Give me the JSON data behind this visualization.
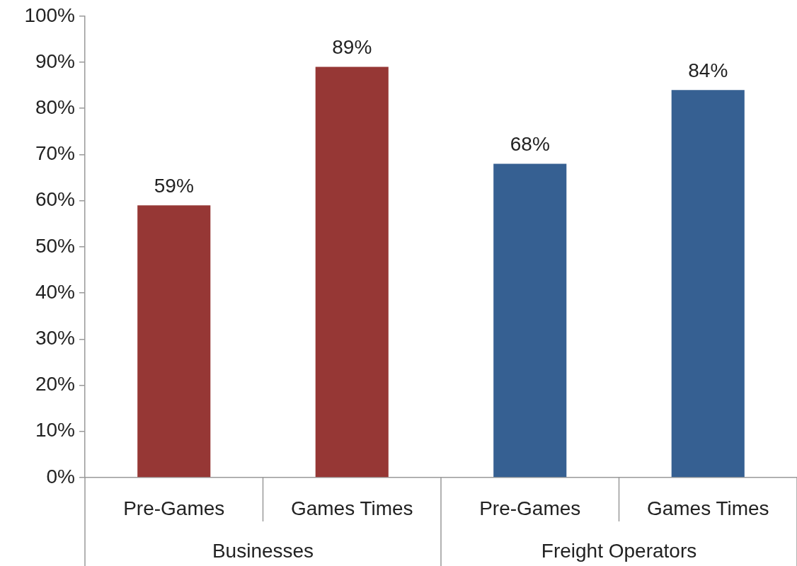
{
  "chart_data": {
    "type": "bar",
    "categories": [
      "Pre-Games",
      "Games Times",
      "Pre-Games",
      "Games Times"
    ],
    "values": [
      59,
      89,
      68,
      84
    ],
    "colors": [
      "#963735",
      "#963735",
      "#366092",
      "#366092"
    ],
    "ylim": [
      0,
      100
    ],
    "yticks": [
      {
        "value": 0,
        "label": "0%"
      },
      {
        "value": 10,
        "label": "10%"
      },
      {
        "value": 20,
        "label": "20%"
      },
      {
        "value": 30,
        "label": "30%"
      },
      {
        "value": 40,
        "label": "40%"
      },
      {
        "value": 50,
        "label": "50%"
      },
      {
        "value": 60,
        "label": "60%"
      },
      {
        "value": 70,
        "label": "70%"
      },
      {
        "value": 80,
        "label": "80%"
      },
      {
        "value": 90,
        "label": "90%"
      },
      {
        "value": 100,
        "label": "100%"
      }
    ],
    "value_labels": [
      "59%",
      "89%",
      "68%",
      "84%"
    ],
    "annotations": [
      "Businesses",
      "Freight Operators"
    ],
    "grid": false,
    "legend": false
  }
}
